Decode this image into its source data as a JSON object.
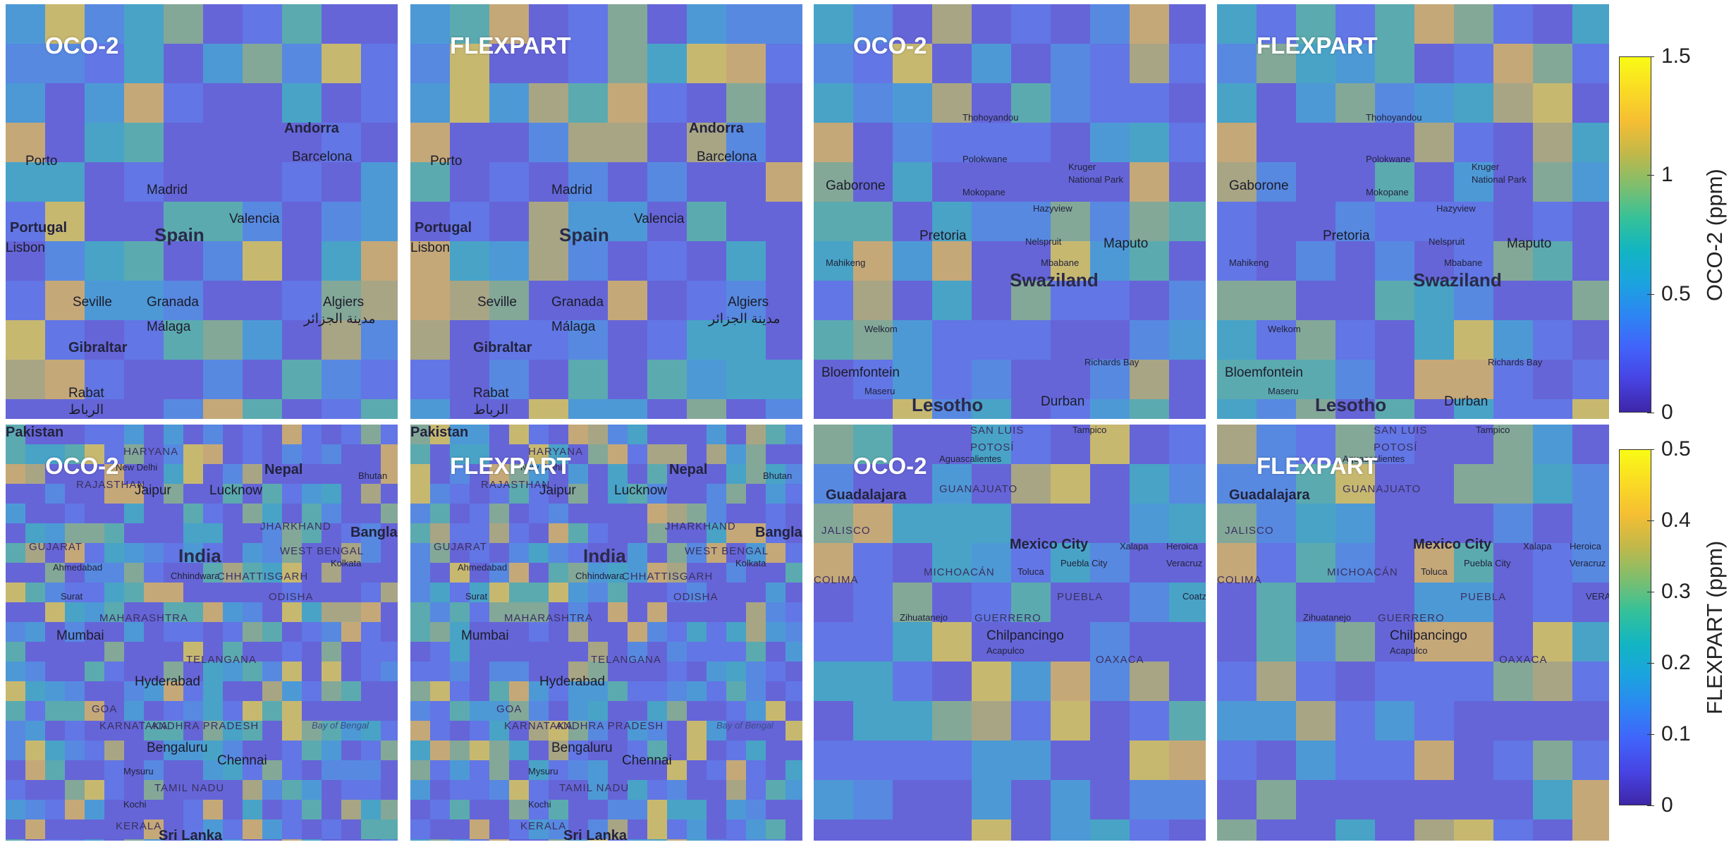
{
  "panels": [
    {
      "title": "OCO-2",
      "region": "spain",
      "colorbar": "oco2",
      "labels": [
        "Porto",
        "Madrid",
        "Andorra",
        "Barcelona",
        "Portugal",
        "Lisbon",
        "Spain",
        "Valencia",
        "Seville",
        "Granada",
        "Málaga",
        "Algiers",
        "مدينة الجزائر",
        "Gibraltar",
        "Rabat",
        "الرباط"
      ]
    },
    {
      "title": "FLEXPART",
      "region": "spain",
      "colorbar": "oco2",
      "labels": [
        "Porto",
        "Madrid",
        "Andorra",
        "Barcelona",
        "Portugal",
        "Lisbon",
        "Spain",
        "Valencia",
        "Seville",
        "Granada",
        "Málaga",
        "Algiers",
        "مدينة الجزائر",
        "Gibraltar",
        "Rabat",
        "الرباط"
      ]
    },
    {
      "title": "OCO-2",
      "region": "south-africa",
      "colorbar": "oco2",
      "labels": [
        "Thohoyandou",
        "Polokwane",
        "Kruger",
        "National Park",
        "Gaborone",
        "Mokopane",
        "Hazyview",
        "Pretoria",
        "Nelspruit",
        "Maputo",
        "Mahikeng",
        "Mbabane",
        "Swaziland",
        "Welkom",
        "Bloemfontein",
        "Richards Bay",
        "Maseru",
        "Lesotho",
        "Durban"
      ]
    },
    {
      "title": "FLEXPART",
      "region": "south-africa",
      "colorbar": "oco2",
      "labels": [
        "Thohoyandou",
        "Polokwane",
        "Kruger",
        "National Park",
        "Gaborone",
        "Mokopane",
        "Hazyview",
        "Pretoria",
        "Nelspruit",
        "Maputo",
        "Mahikeng",
        "Mbabane",
        "Swaziland",
        "Welkom",
        "Bloemfontein",
        "Richards Bay",
        "Maseru",
        "Lesotho",
        "Durban"
      ]
    },
    {
      "title": "OCO-2",
      "region": "india",
      "colorbar": "flexpart",
      "labels": [
        "Pakistan",
        "HARYANA",
        "New Delhi",
        "Nepal",
        "RAJASTHAN",
        "Jaipur",
        "Lucknow",
        "Bhutan",
        "Bangladesh",
        "India",
        "JHARKHAND",
        "WEST BENGAL",
        "GUJARAT",
        "Ahmedabad",
        "Chhindwara",
        "CHHATTISGARH",
        "Kolkata",
        "Surat",
        "ODISHA",
        "MAHARASHTRA",
        "Mumbai",
        "TELANGANA",
        "Hyderabad",
        "GOA",
        "KARNATAKA",
        "ANDHRA PRADESH",
        "Bay of Bengal",
        "Bengaluru",
        "Chennai",
        "Mysuru",
        "TAMIL NADU",
        "Kochi",
        "KERALA",
        "Sri Lanka"
      ]
    },
    {
      "title": "FLEXPART",
      "region": "india",
      "colorbar": "flexpart",
      "labels": [
        "Pakistan",
        "HARYANA",
        "New Delhi",
        "Nepal",
        "RAJASTHAN",
        "Jaipur",
        "Lucknow",
        "Bhutan",
        "Bangladesh",
        "India",
        "JHARKHAND",
        "WEST BENGAL",
        "GUJARAT",
        "Ahmedabad",
        "Chhindwara",
        "CHHATTISGARH",
        "Kolkata",
        "Surat",
        "ODISHA",
        "MAHARASHTRA",
        "Mumbai",
        "TELANGANA",
        "Hyderabad",
        "GOA",
        "KARNATAKA",
        "ANDHRA PRADESH",
        "Bay of Bengal",
        "Bengaluru",
        "Chennai",
        "Mysuru",
        "TAMIL NADU",
        "Kochi",
        "KERALA",
        "Sri Lanka"
      ]
    },
    {
      "title": "OCO-2",
      "region": "mexico",
      "colorbar": "flexpart",
      "labels": [
        "SAN LUIS",
        "POTOSÍ",
        "Tampico",
        "Aguascalientes",
        "Guadalajara",
        "GUANAJUATO",
        "JALISCO",
        "Mexico City",
        "Xalapa",
        "Heroica",
        "Veracruz",
        "MICHOACÁN",
        "Toluca",
        "Puebla City",
        "COLIMA",
        "PUEBLA",
        "Coatzacoalcos",
        "Zihuatanejo",
        "GUERRERO",
        "Chilpancingo",
        "Acapulco",
        "OAXACA"
      ]
    },
    {
      "title": "FLEXPART",
      "region": "mexico",
      "colorbar": "flexpart",
      "labels": [
        "SAN LUIS",
        "POTOSÍ",
        "Tampico",
        "Aguascalientes",
        "Guadalajara",
        "GUANAJUATO",
        "JALISCO",
        "Mexico City",
        "Xalapa",
        "Heroica",
        "Veracruz",
        "MICHOACÁN",
        "Toluca",
        "Puebla City",
        "COLIMA",
        "PUEBLA",
        "VERACRUZ",
        "Zihuatanejo",
        "GUERRERO",
        "Chilpancingo",
        "Acapulco",
        "OAXACA"
      ]
    }
  ],
  "colorbars": {
    "oco2": {
      "label": "OCO-2 (ppm)",
      "min": 0,
      "max": 1.5,
      "ticks": [
        "0",
        "0.5",
        "1",
        "1.5"
      ],
      "tick_values": [
        0,
        0.5,
        1,
        1.5
      ]
    },
    "flexpart": {
      "label": "FLEXPART (ppm)",
      "min": 0,
      "max": 0.5,
      "ticks": [
        "0",
        "0.1",
        "0.2",
        "0.3",
        "0.4",
        "0.5"
      ],
      "tick_values": [
        0,
        0.1,
        0.2,
        0.3,
        0.4,
        0.5
      ]
    }
  },
  "colormap": [
    "#3e26a8",
    "#4743e2",
    "#4163fa",
    "#2d85f3",
    "#1ba3df",
    "#12b5c2",
    "#35c199",
    "#7ebe6e",
    "#c1b84a",
    "#f5be33",
    "#fadb24",
    "#f9fb15"
  ]
}
